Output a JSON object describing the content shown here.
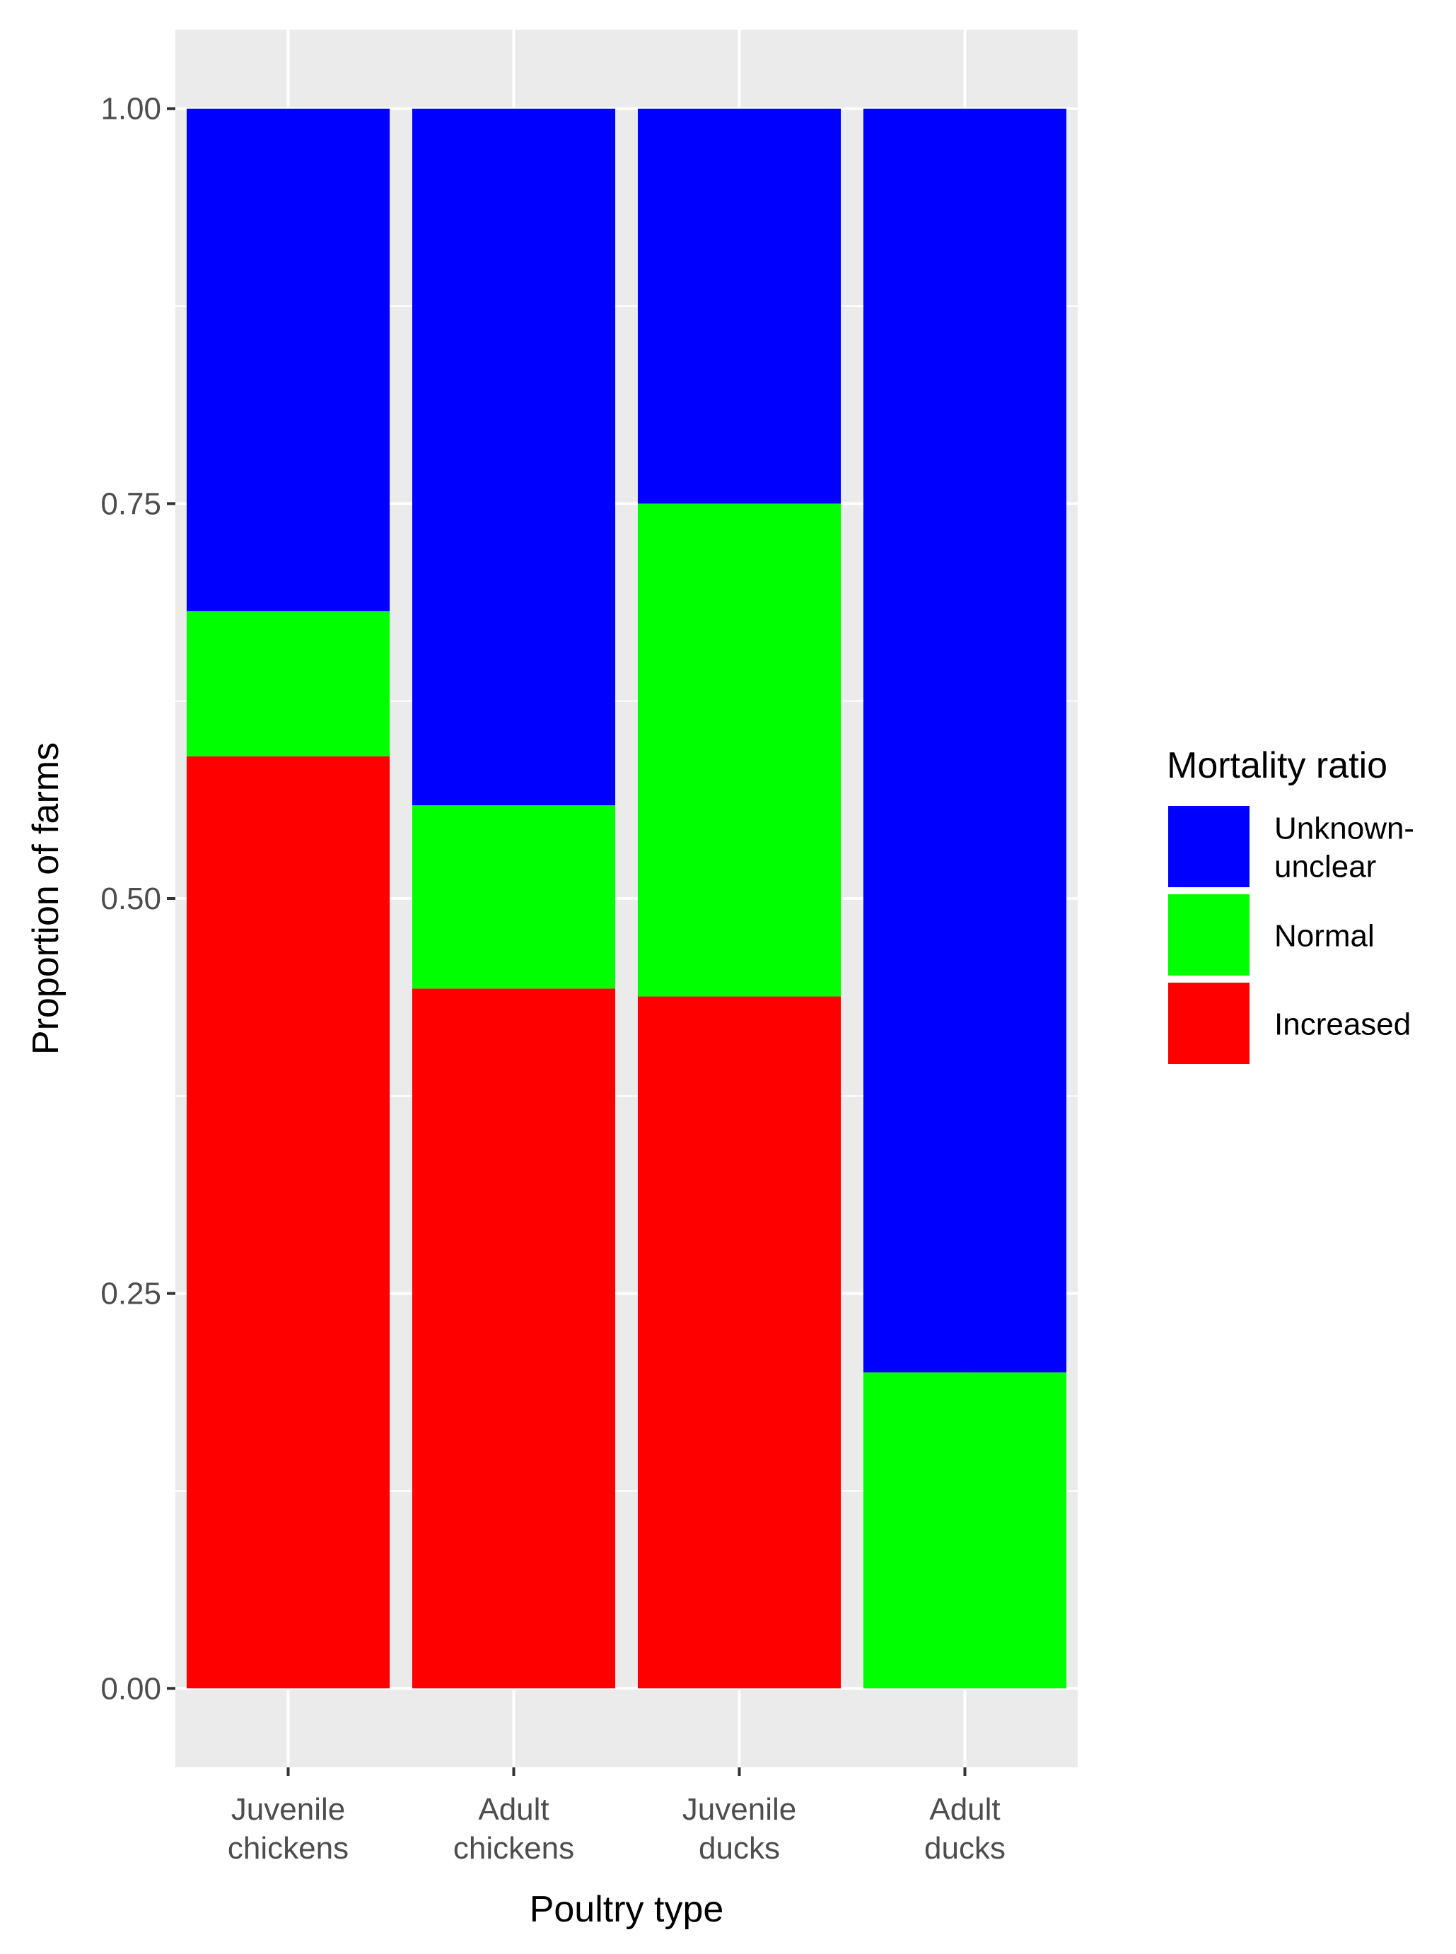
{
  "chart_data": {
    "type": "bar",
    "stacked": true,
    "title": "",
    "xlabel": "Poultry type",
    "ylabel": "Proportion of farms",
    "ylim": [
      -0.05,
      1.05
    ],
    "yticks": [
      0.0,
      0.25,
      0.5,
      0.75,
      1.0
    ],
    "ytick_labels": [
      "0.00",
      "0.25",
      "0.50",
      "0.75",
      "1.00"
    ],
    "categories": [
      [
        "Juvenile",
        "chickens"
      ],
      [
        "Adult",
        "chickens"
      ],
      [
        "Juvenile",
        "ducks"
      ],
      [
        "Adult",
        "ducks"
      ]
    ],
    "series": [
      {
        "name": "Increased",
        "color": "#ff0000",
        "values": [
          0.59,
          0.443,
          0.438,
          0.0
        ]
      },
      {
        "name": "Normal",
        "color": "#00ff00",
        "values": [
          0.092,
          0.116,
          0.312,
          0.2
        ]
      },
      {
        "name": "Unknown-unclear",
        "color": "#0000ff",
        "values": [
          0.318,
          0.441,
          0.25,
          0.8
        ]
      }
    ],
    "legend": {
      "title": "Mortality ratio",
      "position": "right",
      "entries": [
        {
          "label_lines": [
            "Unknown-",
            "unclear"
          ],
          "color": "#0000ff"
        },
        {
          "label_lines": [
            "Normal"
          ],
          "color": "#00ff00"
        },
        {
          "label_lines": [
            "Increased"
          ],
          "color": "#ff0000"
        }
      ]
    },
    "grid": true,
    "panel_background": "#ebebeb",
    "grid_color": "#ffffff"
  }
}
